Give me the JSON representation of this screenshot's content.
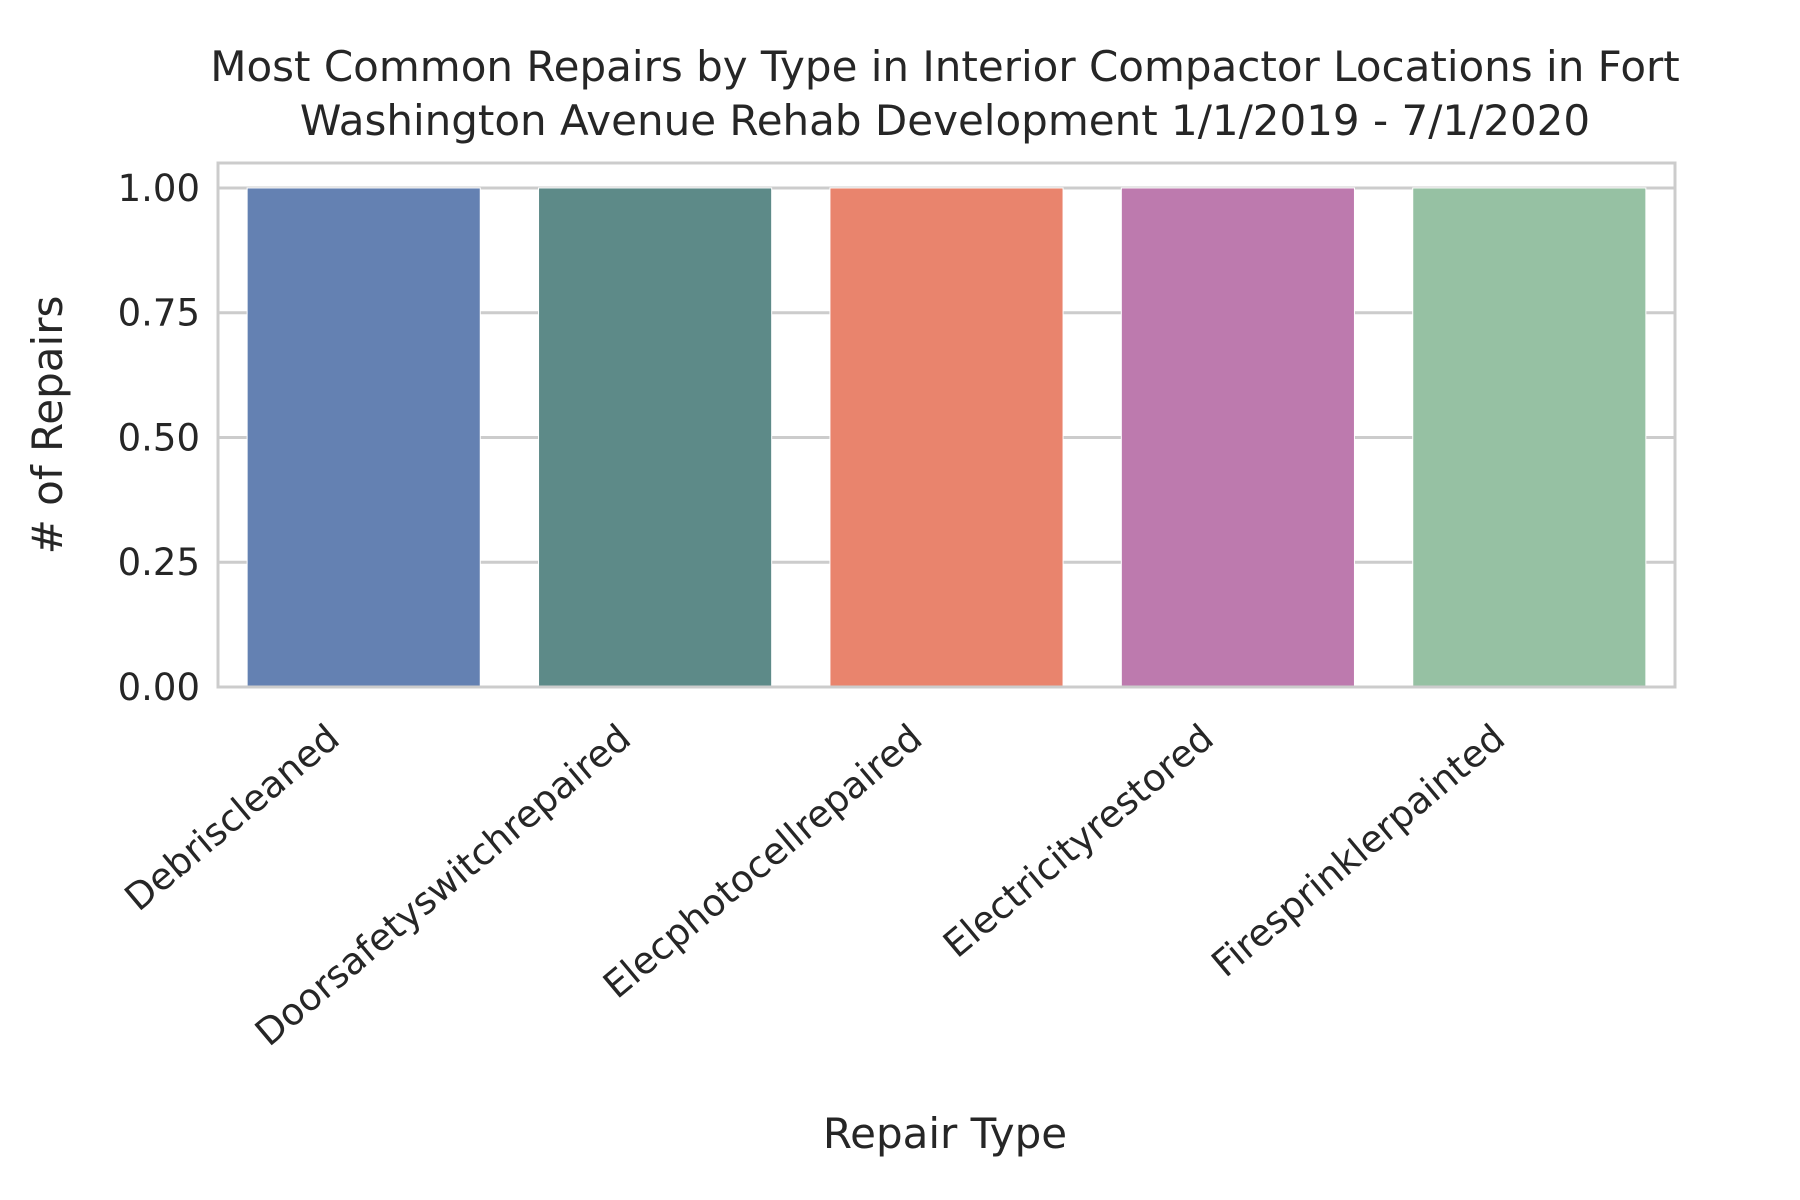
{
  "chart_data": {
    "type": "bar",
    "title_lines": [
      "Most Common Repairs by Type in Interior Compactor Locations in Fort",
      "Washington Avenue Rehab Development 1/1/2019 - 7/1/2020"
    ],
    "xlabel": "Repair Type",
    "ylabel": "# of Repairs",
    "categories": [
      "Debriscleaned",
      "Doorsafetyswitchrepaired",
      "Elecphotocellrepaired",
      "Electricityrestored",
      "Firesprinklerpainted"
    ],
    "values": [
      1,
      1,
      1,
      1,
      1
    ],
    "colors": [
      "#6481b2",
      "#5d8a88",
      "#e9846d",
      "#bd7aae",
      "#96c1a3"
    ],
    "ylim": [
      0,
      1.05
    ],
    "yticks": [
      0,
      0.25,
      0.5,
      0.75,
      1.0
    ],
    "ytick_labels": [
      "0.00",
      "0.25",
      "0.50",
      "0.75",
      "1.00"
    ],
    "grid": "y",
    "grid_color": "#cccccc",
    "frame_color": "#cccccc",
    "legend": "none"
  }
}
